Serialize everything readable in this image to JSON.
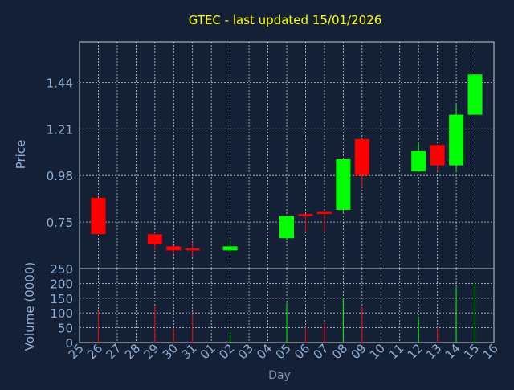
{
  "chart_data": {
    "type": "candlestick",
    "title": "GTEC - last updated 15/01/2026",
    "xlabel": "Day",
    "ylabel_price": "Price",
    "ylabel_volume": "Volume (0000)",
    "x_ticks": [
      "25",
      "26",
      "27",
      "28",
      "29",
      "30",
      "31",
      "01",
      "02",
      "03",
      "04",
      "05",
      "06",
      "07",
      "08",
      "09",
      "10",
      "11",
      "12",
      "13",
      "14",
      "15",
      "16"
    ],
    "price_ticks": [
      0.75,
      0.98,
      1.21,
      1.44
    ],
    "price_tick_labels": [
      "0.75",
      "0.98",
      "1.21",
      "1.44"
    ],
    "price_ylim": [
      0.52,
      1.64
    ],
    "volume_ticks": [
      0,
      50,
      100,
      150,
      200,
      250
    ],
    "volume_ylim": [
      0,
      250
    ],
    "grid": true,
    "up_color": "#00ff00",
    "down_color": "#ff0000",
    "candles": [
      {
        "x": "26",
        "open": 0.87,
        "close": 0.69,
        "high": 0.87,
        "low": 0.69,
        "volume": 105
      },
      {
        "x": "29",
        "open": 0.69,
        "close": 0.64,
        "high": 0.69,
        "low": 0.61,
        "volume": 125
      },
      {
        "x": "30",
        "open": 0.63,
        "close": 0.61,
        "high": 0.63,
        "low": 0.59,
        "volume": 48
      },
      {
        "x": "31",
        "open": 0.62,
        "close": 0.61,
        "high": 0.65,
        "low": 0.58,
        "volume": 95
      },
      {
        "x": "02",
        "open": 0.61,
        "close": 0.63,
        "high": 0.66,
        "low": 0.6,
        "volume": 35
      },
      {
        "x": "05",
        "open": 0.67,
        "close": 0.78,
        "high": 0.78,
        "low": 0.67,
        "volume": 135
      },
      {
        "x": "06",
        "open": 0.79,
        "close": 0.78,
        "high": 0.79,
        "low": 0.7,
        "volume": 52
      },
      {
        "x": "07",
        "open": 0.8,
        "close": 0.79,
        "high": 0.8,
        "low": 0.7,
        "volume": 65
      },
      {
        "x": "08",
        "open": 0.81,
        "close": 1.06,
        "high": 1.06,
        "low": 0.79,
        "volume": 150
      },
      {
        "x": "09",
        "open": 1.16,
        "close": 0.98,
        "high": 1.16,
        "low": 0.92,
        "volume": 120
      },
      {
        "x": "12",
        "open": 1.0,
        "close": 1.1,
        "high": 1.14,
        "low": 1.0,
        "volume": 85
      },
      {
        "x": "13",
        "open": 1.13,
        "close": 1.03,
        "high": 1.13,
        "low": 1.0,
        "volume": 52
      },
      {
        "x": "14",
        "open": 1.03,
        "close": 1.28,
        "high": 1.33,
        "low": 1.0,
        "volume": 190
      },
      {
        "x": "15",
        "open": 1.28,
        "close": 1.48,
        "high": 1.48,
        "low": 1.28,
        "volume": 205
      }
    ]
  }
}
